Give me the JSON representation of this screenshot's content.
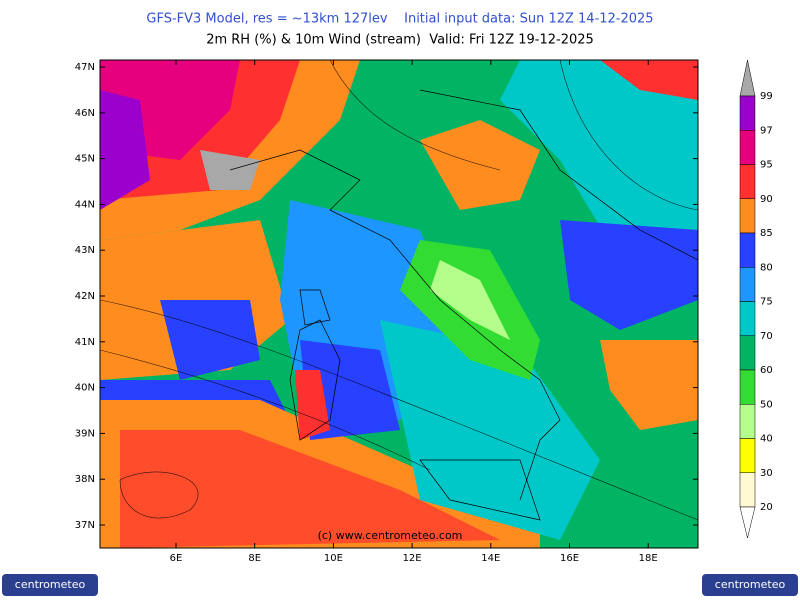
{
  "header": {
    "line1": "GFS-FV3 Model, res = ~13km 127lev    Initial input data: Sun 12Z 14-12-2025",
    "line2": "2m RH (%) & 10m Wind (stream)  Valid: Fri 12Z 19-12-2025"
  },
  "map": {
    "lat_labels": [
      "47N",
      "46N",
      "45N",
      "44N",
      "43N",
      "42N",
      "41N",
      "40N",
      "39N",
      "38N",
      "37N"
    ],
    "lon_labels": [
      "6E",
      "8E",
      "10E",
      "12E",
      "14E",
      "16E",
      "18E"
    ],
    "watermark": "(c) www.centrometeo.com"
  },
  "legend": {
    "levels": [
      99,
      97,
      95,
      90,
      85,
      80,
      75,
      70,
      60,
      50,
      40,
      30,
      20
    ],
    "colors": [
      "#a8a8a8",
      "#9b00cc",
      "#e6007e",
      "#ff3030",
      "#ff8c1e",
      "#2840ff",
      "#1e96ff",
      "#00c8c8",
      "#00b464",
      "#32dc32",
      "#b4ff8c",
      "#ffff00",
      "#fffad2",
      "#ffffff"
    ]
  },
  "logo": "centrometeo"
}
